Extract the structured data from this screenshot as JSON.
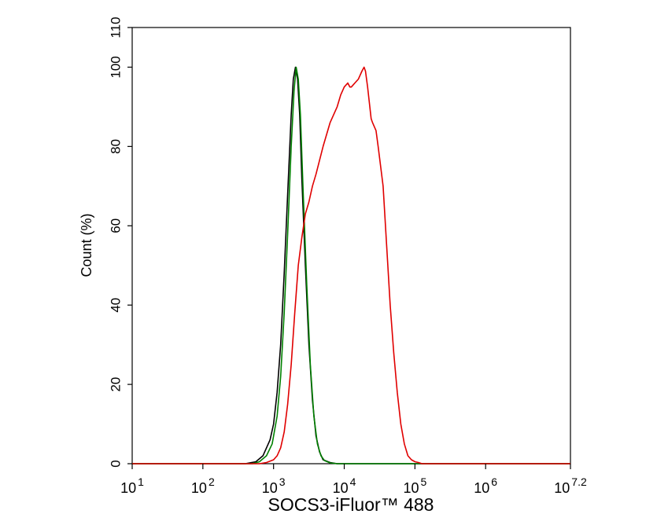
{
  "chart_data": {
    "type": "line",
    "title": "",
    "xlabel": "SOCS3-iFluor™ 488",
    "ylabel": "Count (%)",
    "x_scale": "log",
    "xlim": [
      1,
      7.2
    ],
    "ylim": [
      0,
      110
    ],
    "grid": false,
    "x_ticks": [
      {
        "base": "10",
        "exp": "1",
        "value": 1
      },
      {
        "base": "10",
        "exp": "2",
        "value": 2
      },
      {
        "base": "10",
        "exp": "3",
        "value": 3
      },
      {
        "base": "10",
        "exp": "4",
        "value": 4
      },
      {
        "base": "10",
        "exp": "5",
        "value": 5
      },
      {
        "base": "10",
        "exp": "6",
        "value": 6
      },
      {
        "base": "10",
        "exp": "7.2",
        "value": 7.2
      }
    ],
    "y_ticks": [
      "0",
      "20",
      "40",
      "60",
      "80",
      "100",
      "110"
    ],
    "series": [
      {
        "color": "#000000",
        "x": [
          1,
          2,
          2.6,
          2.75,
          2.85,
          2.95,
          3.0,
          3.05,
          3.1,
          3.15,
          3.2,
          3.25,
          3.28,
          3.31,
          3.34,
          3.37,
          3.4,
          3.45,
          3.5,
          3.55,
          3.6,
          3.65,
          3.7,
          3.8,
          3.9,
          4.0,
          5,
          6,
          7.2
        ],
        "y": [
          0,
          0,
          0,
          0.5,
          2,
          6,
          10,
          18,
          30,
          48,
          68,
          88,
          97,
          100,
          97,
          88,
          72,
          50,
          30,
          16,
          7,
          3,
          1,
          0.3,
          0,
          0,
          0,
          0,
          0
        ]
      },
      {
        "color": "#008000",
        "x": [
          1,
          2,
          2.7,
          2.8,
          2.9,
          2.98,
          3.05,
          3.1,
          3.15,
          3.2,
          3.25,
          3.29,
          3.32,
          3.35,
          3.38,
          3.42,
          3.47,
          3.52,
          3.57,
          3.62,
          3.67,
          3.72,
          3.8,
          3.9,
          5,
          6,
          7.2
        ],
        "y": [
          0,
          0,
          0,
          0.5,
          2,
          5,
          12,
          22,
          38,
          58,
          80,
          94,
          100,
          97,
          88,
          68,
          45,
          25,
          12,
          5,
          2,
          0.8,
          0.2,
          0,
          0,
          0,
          0
        ]
      },
      {
        "color": "#e00000",
        "x": [
          1,
          2,
          2.8,
          2.9,
          3.0,
          3.05,
          3.1,
          3.15,
          3.2,
          3.25,
          3.3,
          3.35,
          3.4,
          3.45,
          3.5,
          3.55,
          3.6,
          3.7,
          3.8,
          3.9,
          3.95,
          4.0,
          4.05,
          4.08,
          4.1,
          4.15,
          4.2,
          4.25,
          4.28,
          4.3,
          4.33,
          4.38,
          4.4,
          4.45,
          4.48,
          4.55,
          4.6,
          4.65,
          4.7,
          4.75,
          4.8,
          4.85,
          4.9,
          4.95,
          5.0,
          5.05,
          5.1,
          5.2,
          5.3,
          6,
          7.2
        ],
        "y": [
          0,
          0,
          0,
          0.3,
          1,
          2,
          4,
          8,
          15,
          25,
          38,
          50,
          57,
          63,
          66,
          70,
          73,
          80,
          86,
          90,
          93,
          95,
          96,
          95,
          95,
          96,
          97,
          99,
          100,
          99,
          95,
          87,
          86,
          84,
          80,
          70,
          55,
          40,
          28,
          18,
          10,
          5,
          2,
          1,
          0.5,
          0.3,
          0,
          0,
          0,
          0,
          0
        ]
      }
    ]
  }
}
